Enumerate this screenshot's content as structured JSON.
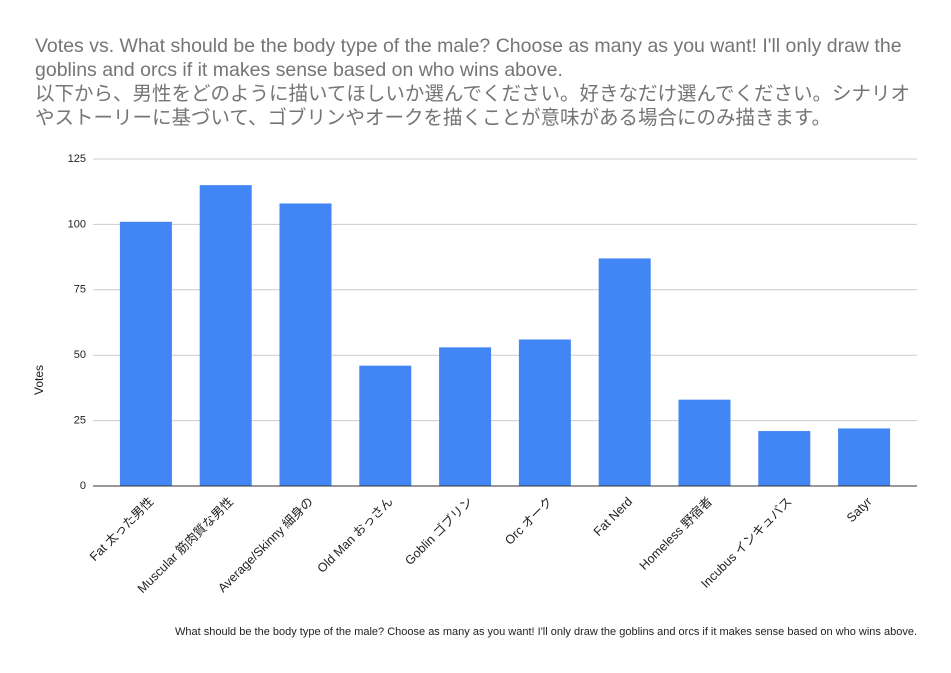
{
  "chart_data": {
    "type": "bar",
    "title": "Votes vs. What should be the body type of the male? Choose as many as you want! I'll only draw the goblins and orcs if it makes sense based on who wins above.\n以下から、男性をどのように描いてほしいか選んでください。好きなだけ選んでください。シナリオやストーリーに基づいて、ゴブリンやオークを描くことが意味がある場合にのみ描きます。",
    "x_label": "What should be the body type of the male? Choose as many as you want! I'll only draw the goblins and orcs if it makes sense based on who wins above.",
    "y_label": "Votes",
    "categories": [
      "Fat 太った男性",
      "Muscular 筋肉質な男性",
      "Average/Skinny 細身の",
      "Old Man おっさん",
      "Goblin ゴブリン",
      "Orc オーク",
      "Fat Nerd",
      "Homeless 野宿者",
      "Incubus インキュバス",
      "Satyr"
    ],
    "values": [
      101,
      115,
      108,
      46,
      53,
      56,
      87,
      33,
      21,
      22
    ],
    "color": "#4285f4",
    "ylim": [
      0,
      125
    ],
    "yticks": [
      0,
      25,
      50,
      75,
      100,
      125
    ],
    "grid": true
  }
}
